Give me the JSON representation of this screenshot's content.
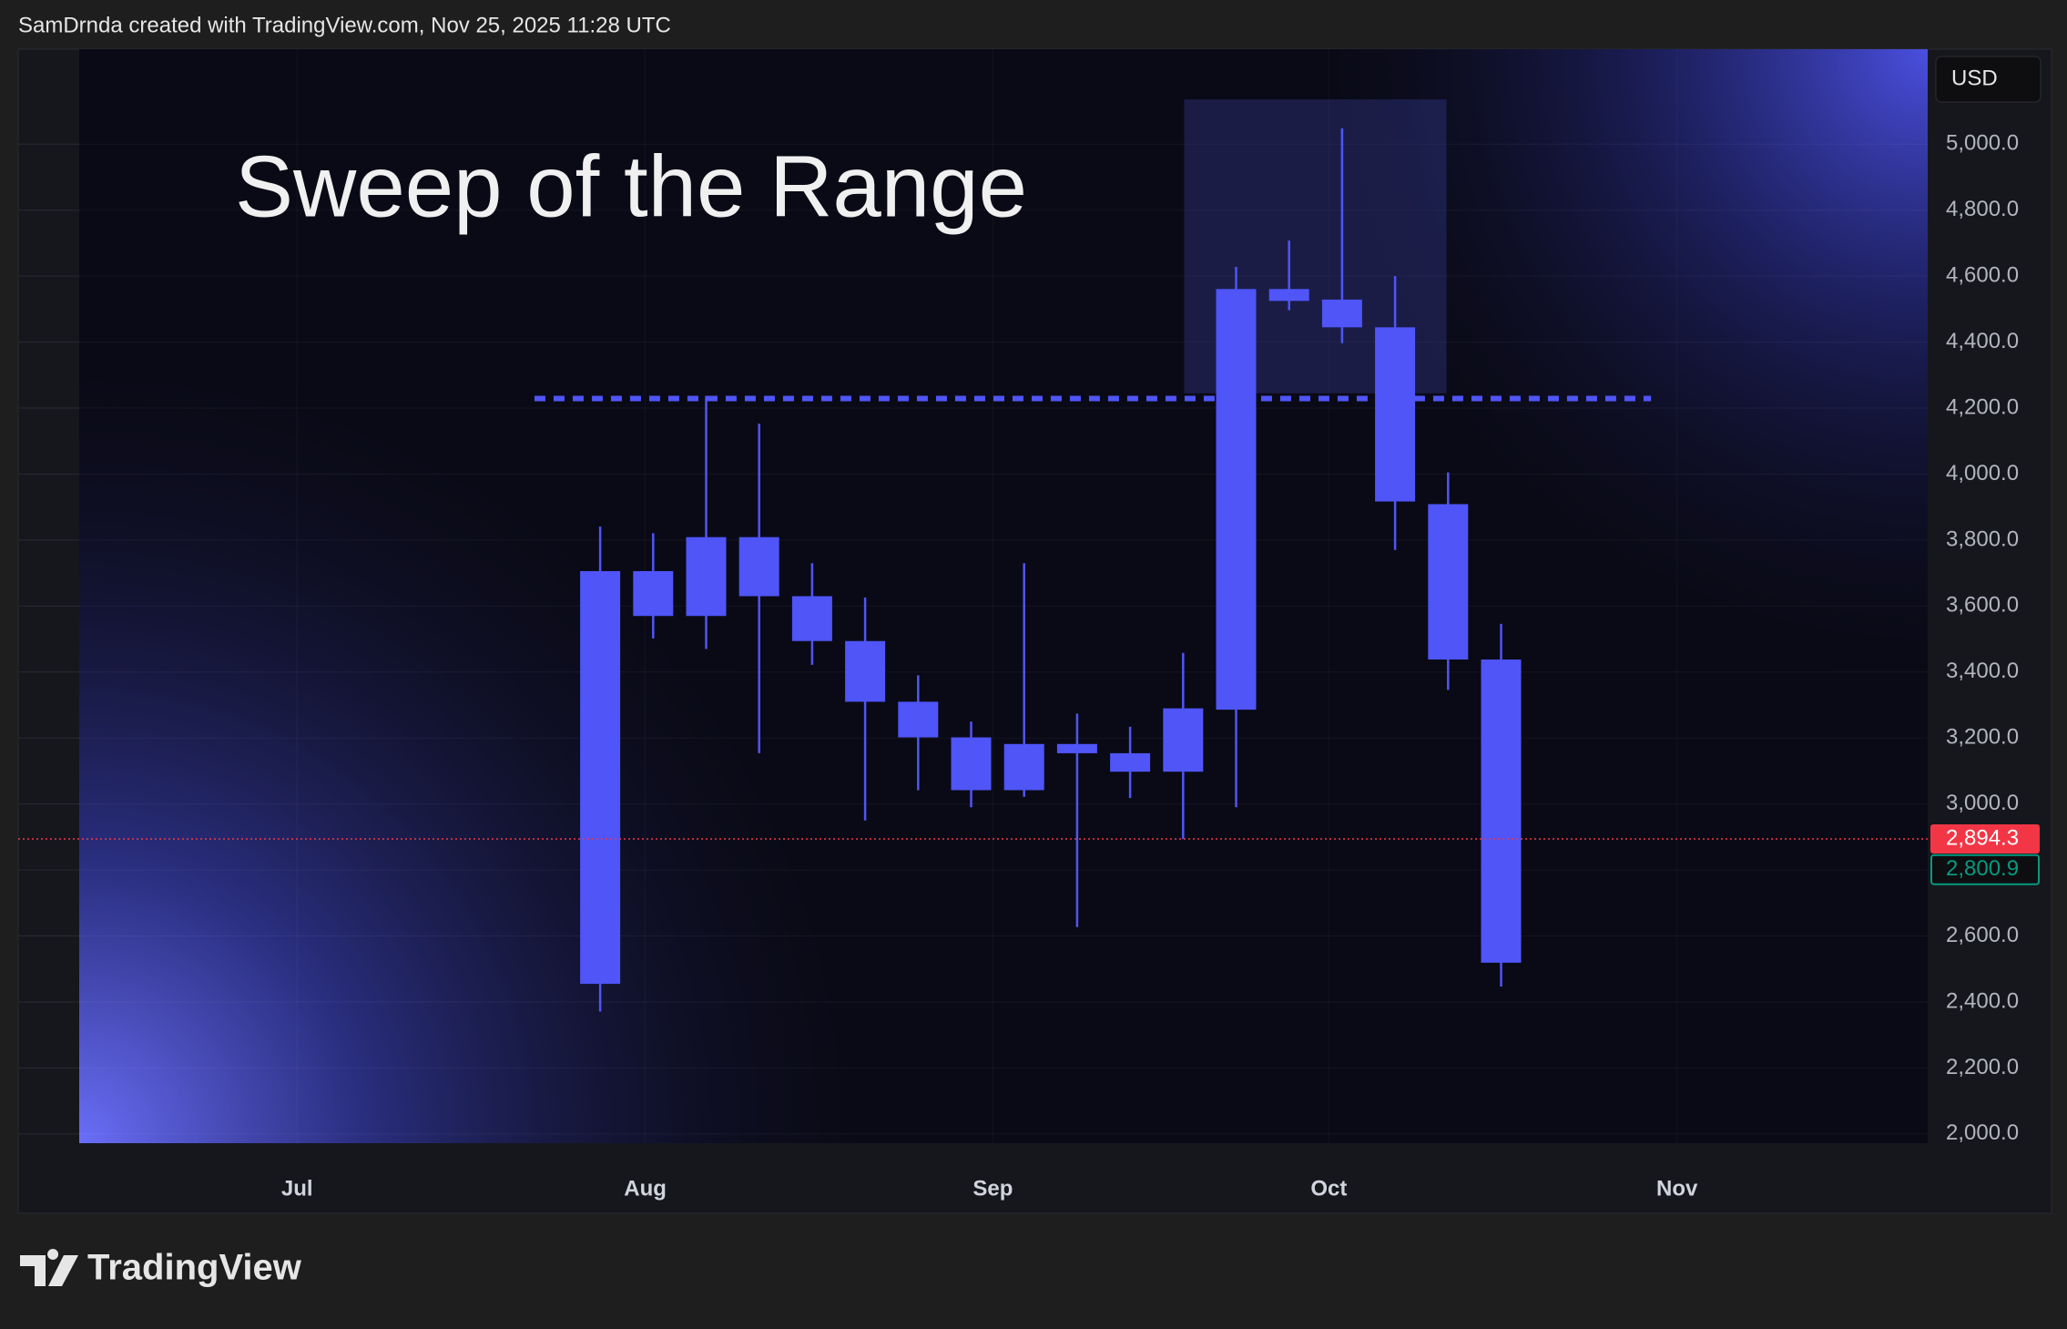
{
  "header": "SamDrnda created with TradingView.com, Nov 25, 2025 11:28 UTC",
  "currency_button": "USD",
  "logo": "TradingView",
  "chart_data": {
    "type": "candlestick",
    "title": "Sweep of the Range",
    "color": "#4f55f7",
    "x": [
      0,
      1,
      2,
      3,
      4,
      5,
      6,
      7,
      8,
      9,
      10,
      11,
      12,
      13,
      14,
      15,
      16,
      17
    ],
    "open": [
      2455,
      3570,
      3570,
      3809,
      3630,
      3494,
      3310,
      3202,
      3042,
      3182,
      3154,
      3098,
      3286,
      4561,
      4529,
      4445,
      3909,
      3438
    ],
    "high": [
      3841,
      3821,
      4237,
      4153,
      3730,
      3626,
      3390,
      3250,
      3730,
      3274,
      3234,
      3458,
      4628,
      4708,
      5048,
      4600,
      4005,
      3546
    ],
    "low": [
      2371,
      3502,
      3470,
      3154,
      3422,
      2950,
      3042,
      2990,
      3022,
      2627,
      3018,
      2894,
      2990,
      4497,
      4397,
      3770,
      3346,
      2447
    ],
    "close": [
      3706,
      3706,
      3809,
      3630,
      3494,
      3310,
      3202,
      3042,
      3182,
      3154,
      3098,
      3290,
      4561,
      4525,
      4445,
      3917,
      3438,
      2519
    ],
    "xlim": [
      -9.83,
      25.05
    ],
    "xticks": [
      {
        "value": -5.72,
        "label": "Jul"
      },
      {
        "value": 0.85,
        "label": "Aug"
      },
      {
        "value": 7.41,
        "label": "Sep"
      },
      {
        "value": 13.75,
        "label": "Oct"
      },
      {
        "value": 20.32,
        "label": "Nov"
      }
    ],
    "ylim": [
      1972,
      5288
    ],
    "yticks": [
      {
        "value": 2000,
        "label": "2,000.0"
      },
      {
        "value": 2200,
        "label": "2,200.0"
      },
      {
        "value": 2400,
        "label": "2,400.0"
      },
      {
        "value": 2600,
        "label": "2,600.0"
      },
      {
        "value": 2800,
        "label": "2,800.0"
      },
      {
        "value": 3000,
        "label": "3,000.0"
      },
      {
        "value": 3200,
        "label": "3,200.0"
      },
      {
        "value": 3400,
        "label": "3,400.0"
      },
      {
        "value": 3600,
        "label": "3,600.0"
      },
      {
        "value": 3800,
        "label": "3,800.0"
      },
      {
        "value": 4000,
        "label": "4,000.0"
      },
      {
        "value": 4200,
        "label": "4,200.0"
      },
      {
        "value": 4400,
        "label": "4,400.0"
      },
      {
        "value": 4600,
        "label": "4,600.0"
      },
      {
        "value": 4800,
        "label": "4,800.0"
      },
      {
        "value": 5000,
        "label": "5,000.0"
      }
    ],
    "grid": true,
    "range_line": {
      "value": 4229,
      "x": [
        -1.24,
        19.83
      ],
      "color": "#4f55f7"
    },
    "highlight_box": {
      "x": [
        11.02,
        15.97
      ],
      "y": [
        4245,
        5136
      ]
    },
    "price_lines": [
      {
        "value": 2894.3,
        "label": "2,894.3",
        "color": "#f23645"
      },
      {
        "value": 2800.9,
        "label": "2,800.9",
        "color": "#089981"
      }
    ]
  }
}
